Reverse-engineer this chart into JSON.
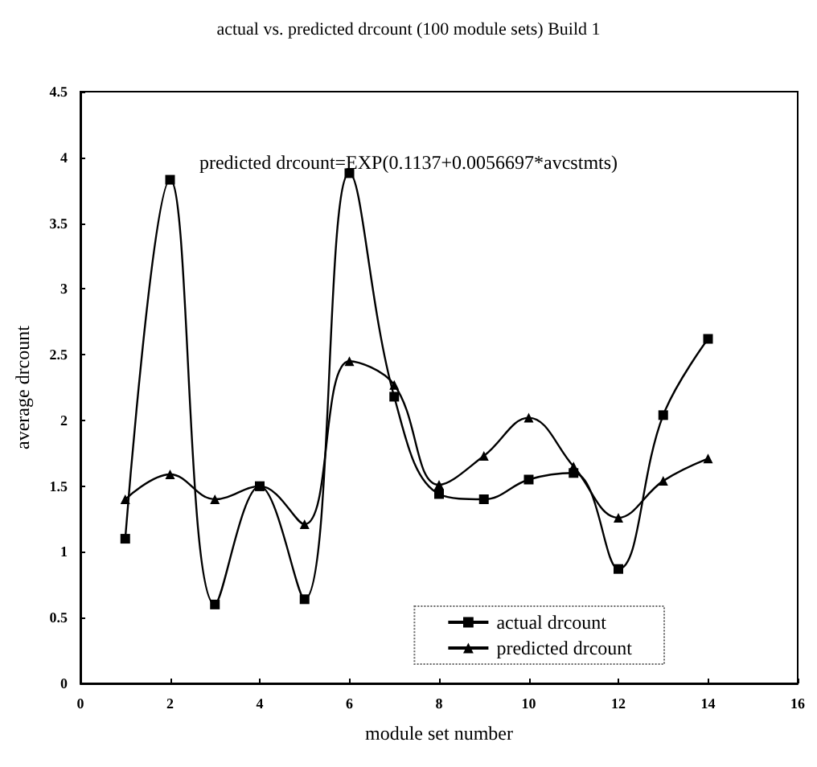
{
  "chart_data": {
    "type": "line",
    "title": "actual vs. predicted drcount (100 module sets) Build 1",
    "xlabel": "module set number",
    "ylabel": "average drcount",
    "annotations": [
      "predicted drcount=EXP(0.1137+0.0056697*avcstmts)"
    ],
    "x": [
      1,
      2,
      3,
      4,
      5,
      6,
      7,
      8,
      9,
      10,
      11,
      12,
      13,
      14
    ],
    "series": [
      {
        "name": "actual drcount",
        "color": "#000000",
        "marker": "square",
        "values": [
          1.1,
          3.83,
          0.6,
          1.5,
          0.64,
          3.88,
          2.18,
          1.44,
          1.4,
          1.55,
          1.6,
          0.87,
          2.04,
          2.62
        ]
      },
      {
        "name": "predicted drcount",
        "color": "#000000",
        "marker": "triangle",
        "values": [
          1.4,
          1.59,
          1.4,
          1.5,
          1.21,
          2.45,
          2.27,
          1.51,
          1.73,
          2.02,
          1.65,
          1.26,
          1.54,
          1.71
        ]
      }
    ],
    "xlim": [
      0,
      16
    ],
    "xticks": [
      0,
      2,
      4,
      6,
      8,
      10,
      12,
      14,
      16
    ],
    "ylim": [
      0,
      4.5
    ],
    "yticks": [
      0,
      0.5,
      1,
      1.5,
      2,
      2.5,
      3,
      3.5,
      4,
      4.5
    ],
    "grid": false,
    "legend": "bottom right",
    "line_style": "solid"
  }
}
